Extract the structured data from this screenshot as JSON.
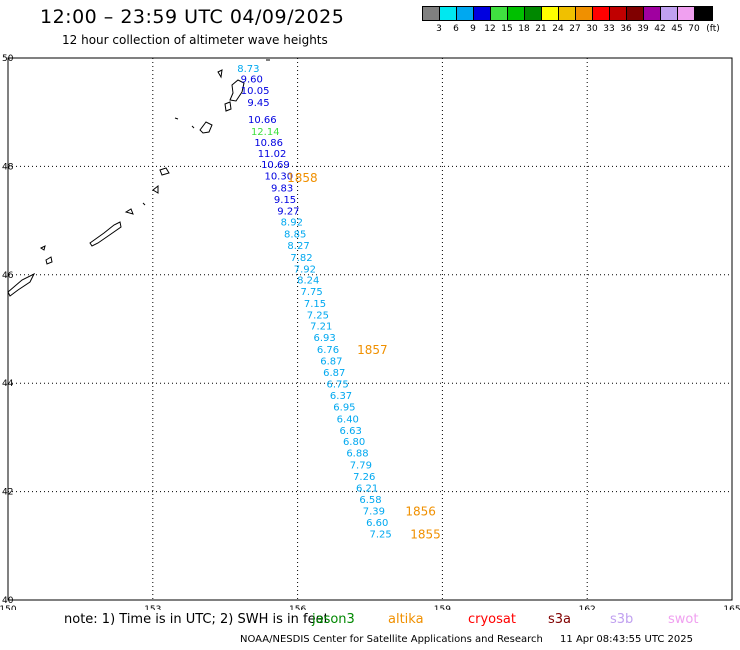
{
  "title": "12:00 – 23:59 UTC 04/09/2025",
  "subtitle": "12 hour collection of altimeter wave heights",
  "legend": {
    "unit": "(ft)",
    "bins": [
      {
        "label": "3",
        "color": "#808080"
      },
      {
        "label": "6",
        "color": "#00e8f0"
      },
      {
        "label": "9",
        "color": "#00a8f0"
      },
      {
        "label": "12",
        "color": "#0000e0"
      },
      {
        "label": "15",
        "color": "#40e040"
      },
      {
        "label": "18",
        "color": "#00c000"
      },
      {
        "label": "21",
        "color": "#008800"
      },
      {
        "label": "24",
        "color": "#ffff00"
      },
      {
        "label": "27",
        "color": "#f0c000"
      },
      {
        "label": "30",
        "color": "#f09000"
      },
      {
        "label": "33",
        "color": "#ff0000"
      },
      {
        "label": "36",
        "color": "#c00000"
      },
      {
        "label": "39",
        "color": "#800000"
      },
      {
        "label": "42",
        "color": "#a000a0"
      },
      {
        "label": "45",
        "color": "#c0a0f0"
      },
      {
        "label": "70",
        "color": "#f0a0f0"
      },
      {
        "label": "",
        "color": "#000000"
      }
    ]
  },
  "map": {
    "lon_ticks": [
      "150",
      "153",
      "156",
      "159",
      "162",
      "165"
    ],
    "lat_ticks": [
      "50",
      "48",
      "46",
      "44",
      "42",
      "40"
    ],
    "grid": "dotted",
    "track_color_rule": "value colored by legend bin",
    "track": [
      {
        "lat": 49.82,
        "lon": 154.98,
        "value": "8.73"
      },
      {
        "lat": 49.62,
        "lon": 155.05,
        "value": "9.60"
      },
      {
        "lat": 49.41,
        "lon": 155.12,
        "value": "10.05"
      },
      {
        "lat": 49.19,
        "lon": 155.19,
        "value": "9.45"
      },
      {
        "lat": 48.87,
        "lon": 155.27,
        "value": "10.66"
      },
      {
        "lat": 48.65,
        "lon": 155.33,
        "value": "12.14"
      },
      {
        "lat": 48.45,
        "lon": 155.4,
        "value": "10.86"
      },
      {
        "lat": 48.25,
        "lon": 155.47,
        "value": "11.02"
      },
      {
        "lat": 48.04,
        "lon": 155.54,
        "value": "10.69"
      },
      {
        "lat": 47.83,
        "lon": 155.61,
        "value": "10.30"
      },
      {
        "lat": 47.61,
        "lon": 155.68,
        "value": "9.83"
      },
      {
        "lat": 47.4,
        "lon": 155.74,
        "value": "9.15"
      },
      {
        "lat": 47.19,
        "lon": 155.81,
        "value": "9.27"
      },
      {
        "lat": 46.98,
        "lon": 155.88,
        "value": "8.92"
      },
      {
        "lat": 46.76,
        "lon": 155.95,
        "value": "8.85"
      },
      {
        "lat": 46.55,
        "lon": 156.02,
        "value": "8.27"
      },
      {
        "lat": 46.33,
        "lon": 156.08,
        "value": "7.82"
      },
      {
        "lat": 46.12,
        "lon": 156.15,
        "value": "7.92"
      },
      {
        "lat": 45.91,
        "lon": 156.22,
        "value": "8.24"
      },
      {
        "lat": 45.7,
        "lon": 156.29,
        "value": "7.75"
      },
      {
        "lat": 45.48,
        "lon": 156.36,
        "value": "7.15"
      },
      {
        "lat": 45.27,
        "lon": 156.42,
        "value": "7.25"
      },
      {
        "lat": 45.06,
        "lon": 156.49,
        "value": "7.21"
      },
      {
        "lat": 44.85,
        "lon": 156.56,
        "value": "6.93"
      },
      {
        "lat": 44.63,
        "lon": 156.63,
        "value": "6.76"
      },
      {
        "lat": 44.42,
        "lon": 156.7,
        "value": "6.87"
      },
      {
        "lat": 44.21,
        "lon": 156.76,
        "value": "6.87"
      },
      {
        "lat": 43.99,
        "lon": 156.83,
        "value": "6.75"
      },
      {
        "lat": 43.78,
        "lon": 156.9,
        "value": "6.37"
      },
      {
        "lat": 43.57,
        "lon": 156.97,
        "value": "6.95"
      },
      {
        "lat": 43.35,
        "lon": 157.04,
        "value": "6.40"
      },
      {
        "lat": 43.14,
        "lon": 157.1,
        "value": "6.63"
      },
      {
        "lat": 42.93,
        "lon": 157.17,
        "value": "6.80"
      },
      {
        "lat": 42.72,
        "lon": 157.24,
        "value": "6.88"
      },
      {
        "lat": 42.5,
        "lon": 157.31,
        "value": "7.79"
      },
      {
        "lat": 42.29,
        "lon": 157.38,
        "value": "7.26"
      },
      {
        "lat": 42.08,
        "lon": 157.44,
        "value": "6.21"
      },
      {
        "lat": 41.86,
        "lon": 157.51,
        "value": "6.58"
      },
      {
        "lat": 41.65,
        "lon": 157.58,
        "value": "7.39"
      },
      {
        "lat": 41.44,
        "lon": 157.65,
        "value": "6.60"
      },
      {
        "lat": 41.23,
        "lon": 157.72,
        "value": "7.25"
      }
    ],
    "time_labels": [
      {
        "text": "1858",
        "lat": 47.8,
        "lon": 156.1,
        "color": "#f09000"
      },
      {
        "text": "1857",
        "lat": 44.63,
        "lon": 157.55,
        "color": "#f09000"
      },
      {
        "text": "1856",
        "lat": 41.65,
        "lon": 158.55,
        "color": "#f09000"
      },
      {
        "text": "1855",
        "lat": 41.23,
        "lon": 158.65,
        "color": "#f09000"
      }
    ]
  },
  "footer": {
    "note": "note:  1) Time is in UTC;  2) SWH is in feet",
    "missions": [
      {
        "name": "jason3",
        "color": "#008800"
      },
      {
        "name": "altika",
        "color": "#f09000"
      },
      {
        "name": "cryosat",
        "color": "#ff0000"
      },
      {
        "name": "s3a",
        "color": "#800000"
      },
      {
        "name": "s3b",
        "color": "#c0a0f0"
      },
      {
        "name": "swot",
        "color": "#f0a0f0"
      }
    ],
    "credit": "NOAA/NESDIS Center for Satellite Applications and Research",
    "timestamp": "11 Apr 08:43:55 UTC 2025"
  }
}
